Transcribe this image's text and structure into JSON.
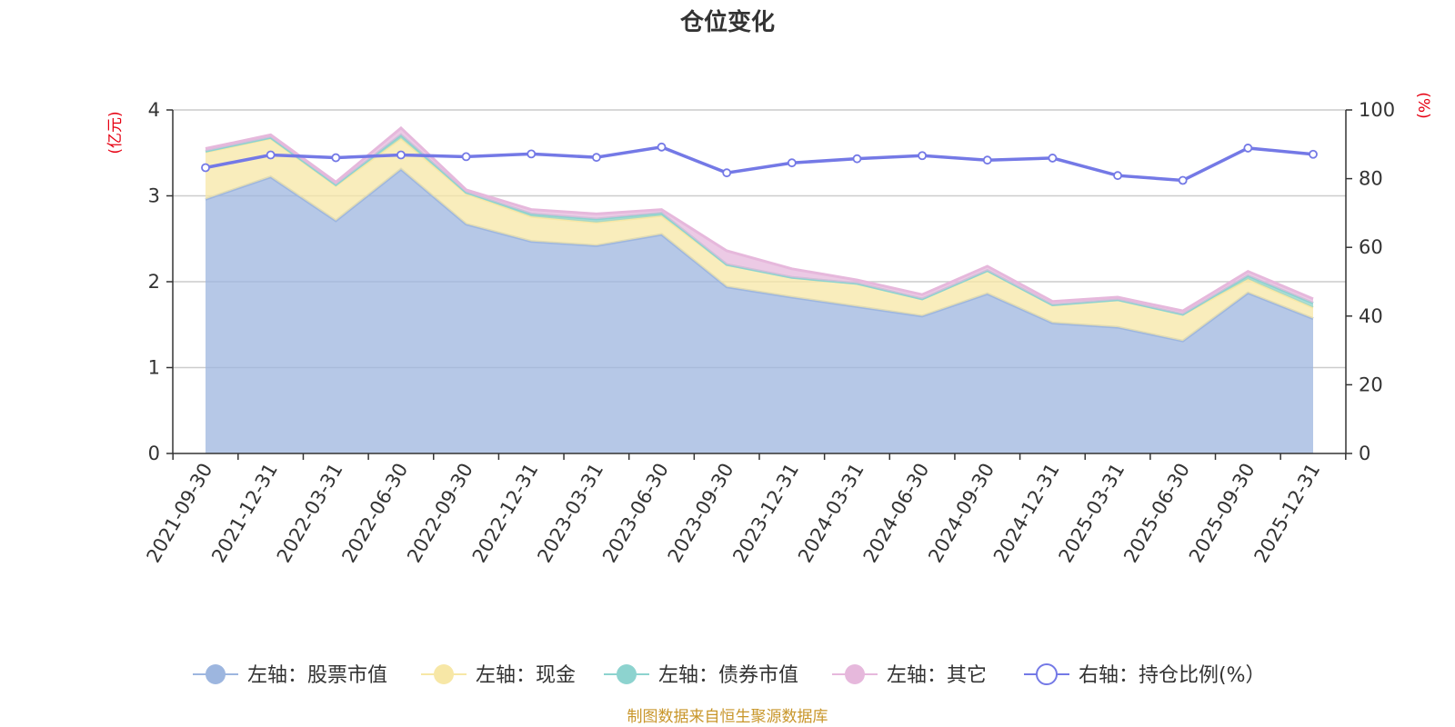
{
  "chart_data": {
    "type": "area",
    "title": "仓位变化",
    "left_axis_unit": "(亿元)",
    "right_axis_unit": "(%)",
    "categories": [
      "2021-09-30",
      "2021-12-31",
      "2022-03-31",
      "2022-06-30",
      "2022-09-30",
      "2022-12-31",
      "2023-03-31",
      "2023-06-30",
      "2023-09-30",
      "2023-12-31",
      "2024-03-31",
      "2024-06-30",
      "2024-09-30",
      "2024-12-31",
      "2025-03-31",
      "2025-06-30",
      "2025-09-30",
      "2025-12-31"
    ],
    "left_ylim": [
      0,
      4
    ],
    "left_ticks": [
      "0",
      "1",
      "2",
      "3",
      "4"
    ],
    "right_ylim": [
      0,
      100
    ],
    "right_ticks": [
      "0",
      "20",
      "40",
      "60",
      "80",
      "100"
    ],
    "grid": true,
    "stacked": true,
    "series": [
      {
        "name": "左轴：股票市值",
        "axis": "left",
        "kind": "area",
        "color": "#9db6df",
        "values": [
          2.96,
          3.22,
          2.71,
          3.31,
          2.67,
          2.47,
          2.42,
          2.55,
          1.94,
          1.82,
          1.71,
          1.6,
          1.86,
          1.52,
          1.47,
          1.31,
          1.87,
          1.57
        ]
      },
      {
        "name": "左轴：现金",
        "axis": "left",
        "kind": "area",
        "color": "#f7e7a6",
        "values": [
          0.55,
          0.45,
          0.41,
          0.36,
          0.36,
          0.29,
          0.27,
          0.22,
          0.26,
          0.23,
          0.27,
          0.2,
          0.27,
          0.21,
          0.32,
          0.31,
          0.16,
          0.13
        ]
      },
      {
        "name": "左轴：债券市值",
        "axis": "left",
        "kind": "area",
        "color": "#8dd3cf",
        "values": [
          0.01,
          0.01,
          0.01,
          0.04,
          0.01,
          0.03,
          0.04,
          0.03,
          0.0,
          0.0,
          0.0,
          0.0,
          0.0,
          0.0,
          0.0,
          0.0,
          0.04,
          0.05
        ]
      },
      {
        "name": "左轴：其它",
        "axis": "left",
        "kind": "area",
        "color": "#e6b8dc",
        "values": [
          0.03,
          0.03,
          0.03,
          0.08,
          0.03,
          0.05,
          0.06,
          0.04,
          0.16,
          0.1,
          0.04,
          0.05,
          0.05,
          0.04,
          0.03,
          0.04,
          0.05,
          0.05
        ]
      },
      {
        "name": "右轴：持仓比例(%）",
        "axis": "right",
        "kind": "line",
        "color": "#7479e6",
        "values": [
          83.2,
          86.9,
          86.1,
          86.9,
          86.4,
          87.2,
          86.2,
          89.2,
          81.7,
          84.6,
          85.8,
          86.7,
          85.4,
          86.0,
          80.9,
          79.5,
          88.9,
          87.1
        ]
      }
    ],
    "legend_position": "bottom-center",
    "source_note": "制图数据来自恒生聚源数据库"
  }
}
